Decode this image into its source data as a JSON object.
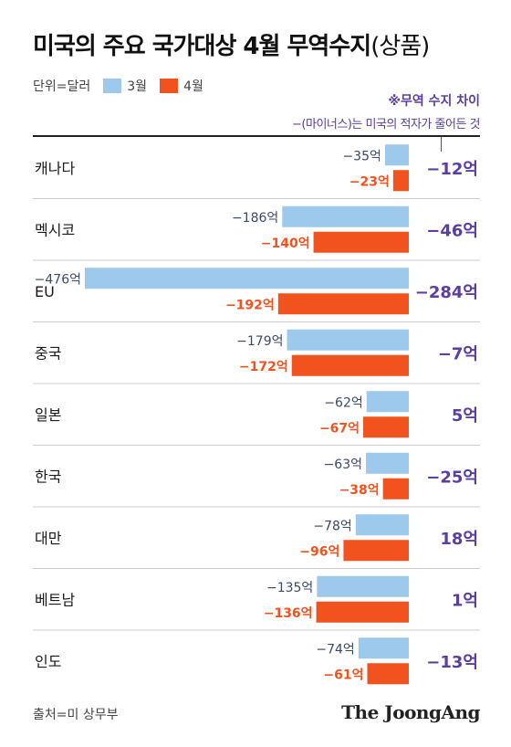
{
  "title": {
    "main": "미국의 주요 국가대상 4월 무역수지",
    "paren": "(상품)"
  },
  "legend": {
    "unit": "단위=달러",
    "items": [
      {
        "label": "3월",
        "color": "#9dc9ec"
      },
      {
        "label": "4월",
        "color": "#f1521e"
      }
    ]
  },
  "note": {
    "line1": "※무역 수지 차이",
    "line2": "−(마이너스)는 미국의 적자가 줄어든 것"
  },
  "colors": {
    "march": "#9dc9ec",
    "april": "#f1521e",
    "diff": "#5b3ea0",
    "divider": "#cccccc"
  },
  "chart_data": {
    "type": "bar",
    "unit": "억",
    "categories": [
      "캐나다",
      "멕시코",
      "EU",
      "중국",
      "일본",
      "한국",
      "대만",
      "베트남",
      "인도"
    ],
    "series": [
      {
        "name": "3월",
        "values": [
          -35,
          -186,
          -476,
          -179,
          -62,
          -63,
          -78,
          -135,
          -74
        ]
      },
      {
        "name": "4월",
        "values": [
          -23,
          -140,
          -192,
          -172,
          -67,
          -38,
          -96,
          -136,
          -61
        ]
      }
    ],
    "labels_march": [
      "−35억",
      "−186억",
      "−476억",
      "−179억",
      "−62억",
      "−63억",
      "−78억",
      "−135억",
      "−74억"
    ],
    "labels_april": [
      "−23억",
      "−140억",
      "−192억",
      "−172억",
      "−67억",
      "−38억",
      "−96억",
      "−136억",
      "−61억"
    ],
    "difference": [
      "−12억",
      "−46억",
      "−284억",
      "−7억",
      "5억",
      "−25억",
      "18억",
      "1억",
      "−13억"
    ]
  },
  "footer": {
    "source": "출처=미 상무부",
    "brand": "The JoongAng"
  }
}
